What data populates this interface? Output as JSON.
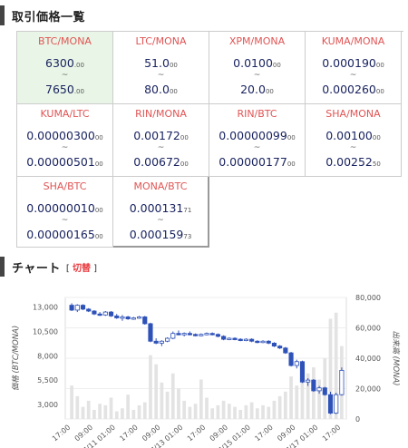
{
  "prices_section": {
    "title": "取引価格一覧"
  },
  "pairs": [
    {
      "pair": "BTC/MONA",
      "low_main": "6300",
      "low_dec": ".00",
      "high_main": "7650",
      "high_dec": ".00",
      "selected": true
    },
    {
      "pair": "LTC/MONA",
      "low_main": "51.0",
      "low_dec": "00",
      "high_main": "80.0",
      "high_dec": "00"
    },
    {
      "pair": "XPM/MONA",
      "low_main": "0.0100",
      "low_dec": "00",
      "high_main": "20.0",
      "high_dec": "00"
    },
    {
      "pair": "KUMA/MONA",
      "low_main": "0.000190",
      "low_dec": "00",
      "high_main": "0.000260",
      "high_dec": "00"
    },
    {
      "pair": "KUMA/LTC",
      "low_main": "0.00000300",
      "low_dec": "00",
      "high_main": "0.00000501",
      "high_dec": "00"
    },
    {
      "pair": "RIN/MONA",
      "low_main": "0.00172",
      "low_dec": "00",
      "high_main": "0.00672",
      "high_dec": "00"
    },
    {
      "pair": "RIN/BTC",
      "low_main": "0.00000099",
      "low_dec": "00",
      "high_main": "0.00000177",
      "high_dec": "00"
    },
    {
      "pair": "SHA/MONA",
      "low_main": "0.00100",
      "low_dec": "00",
      "high_main": "0.00252",
      "high_dec": "50"
    },
    {
      "pair": "SHA/BTC",
      "low_main": "0.00000010",
      "low_dec": "00",
      "high_main": "0.00000165",
      "high_dec": "00"
    },
    {
      "pair": "MONA/BTC",
      "low_main": "0.000131",
      "low_dec": "71",
      "high_main": "0.000159",
      "high_dec": "73"
    }
  ],
  "range_separator": "~",
  "chart_section": {
    "title": "チャート",
    "switch_open": "[",
    "switch_label": "切替",
    "switch_close": "]"
  },
  "chart_data": {
    "type": "candlestick",
    "title": "",
    "ylabel": "価格 (BTC/MONA)",
    "y2label": "出来高 (MONA)",
    "ylim": [
      1500,
      14000
    ],
    "y2lim": [
      0,
      80000
    ],
    "yticks": [
      "13,000",
      "10,500",
      "8,000",
      "5,500",
      "3,000"
    ],
    "yticks_values": [
      13000,
      10500,
      8000,
      5500,
      3000
    ],
    "y2ticks": [
      "80,000",
      "60,000",
      "40,000",
      "20,000",
      "0"
    ],
    "y2ticks_values": [
      80000,
      60000,
      40000,
      20000,
      0
    ],
    "xticks": [
      "17:00",
      "09:00",
      "7/11 01:00",
      "17:00",
      "09:00",
      "7/13 01:00",
      "17:00",
      "09:00",
      "7/15 01:00",
      "17:00",
      "09:00",
      "7/17 01:00",
      "17:00"
    ],
    "colors": {
      "up": "#ffffff",
      "down": "#2f52b8",
      "wick": "#2f52b8",
      "volume": "#e3e3e3"
    },
    "candles": [
      {
        "o": 13200,
        "h": 13400,
        "l": 12600,
        "c": 12700
      },
      {
        "o": 12700,
        "h": 13300,
        "l": 12500,
        "c": 13200
      },
      {
        "o": 13200,
        "h": 13300,
        "l": 12700,
        "c": 12800
      },
      {
        "o": 12800,
        "h": 12900,
        "l": 12500,
        "c": 12600
      },
      {
        "o": 12600,
        "h": 12700,
        "l": 12200,
        "c": 12300
      },
      {
        "o": 12300,
        "h": 12500,
        "l": 12100,
        "c": 12200
      },
      {
        "o": 12200,
        "h": 12600,
        "l": 12100,
        "c": 12500
      },
      {
        "o": 12500,
        "h": 12600,
        "l": 12000,
        "c": 12100
      },
      {
        "o": 12100,
        "h": 12300,
        "l": 11800,
        "c": 11900
      },
      {
        "o": 11900,
        "h": 12200,
        "l": 11600,
        "c": 12000
      },
      {
        "o": 12000,
        "h": 12100,
        "l": 11700,
        "c": 11800
      },
      {
        "o": 11800,
        "h": 12000,
        "l": 11700,
        "c": 11900
      },
      {
        "o": 11900,
        "h": 12100,
        "l": 11800,
        "c": 12000
      },
      {
        "o": 12000,
        "h": 12100,
        "l": 11200,
        "c": 11300
      },
      {
        "o": 11300,
        "h": 11400,
        "l": 9400,
        "c": 9500
      },
      {
        "o": 9500,
        "h": 9800,
        "l": 9200,
        "c": 9300
      },
      {
        "o": 9300,
        "h": 9600,
        "l": 9000,
        "c": 9500
      },
      {
        "o": 9500,
        "h": 9900,
        "l": 9400,
        "c": 9800
      },
      {
        "o": 9800,
        "h": 10500,
        "l": 9700,
        "c": 10300
      },
      {
        "o": 10300,
        "h": 10600,
        "l": 10100,
        "c": 10200
      },
      {
        "o": 10200,
        "h": 10400,
        "l": 10000,
        "c": 10300
      },
      {
        "o": 10300,
        "h": 10500,
        "l": 10100,
        "c": 10200
      },
      {
        "o": 10200,
        "h": 10300,
        "l": 10000,
        "c": 10100
      },
      {
        "o": 10100,
        "h": 10300,
        "l": 10000,
        "c": 10200
      },
      {
        "o": 10200,
        "h": 10400,
        "l": 10100,
        "c": 10300
      },
      {
        "o": 10300,
        "h": 10400,
        "l": 10100,
        "c": 10200
      },
      {
        "o": 10200,
        "h": 10300,
        "l": 9900,
        "c": 10000
      },
      {
        "o": 10000,
        "h": 10100,
        "l": 9600,
        "c": 9700
      },
      {
        "o": 9700,
        "h": 9900,
        "l": 9600,
        "c": 9800
      },
      {
        "o": 9800,
        "h": 9900,
        "l": 9600,
        "c": 9700
      },
      {
        "o": 9700,
        "h": 9800,
        "l": 9500,
        "c": 9600
      },
      {
        "o": 9600,
        "h": 9800,
        "l": 9500,
        "c": 9700
      },
      {
        "o": 9700,
        "h": 9800,
        "l": 9400,
        "c": 9500
      },
      {
        "o": 9500,
        "h": 9600,
        "l": 9300,
        "c": 9400
      },
      {
        "o": 9400,
        "h": 9600,
        "l": 9300,
        "c": 9500
      },
      {
        "o": 9500,
        "h": 9600,
        "l": 9200,
        "c": 9300
      },
      {
        "o": 9300,
        "h": 9400,
        "l": 8900,
        "c": 9000
      },
      {
        "o": 9000,
        "h": 9100,
        "l": 8700,
        "c": 8800
      },
      {
        "o": 8800,
        "h": 8900,
        "l": 8200,
        "c": 8300
      },
      {
        "o": 8300,
        "h": 8400,
        "l": 6900,
        "c": 7000
      },
      {
        "o": 7000,
        "h": 7600,
        "l": 6700,
        "c": 7400
      },
      {
        "o": 7400,
        "h": 7500,
        "l": 5200,
        "c": 5300
      },
      {
        "o": 5300,
        "h": 5700,
        "l": 4900,
        "c": 5500
      },
      {
        "o": 5500,
        "h": 5600,
        "l": 4300,
        "c": 4400
      },
      {
        "o": 4400,
        "h": 4900,
        "l": 4100,
        "c": 4700
      },
      {
        "o": 4700,
        "h": 4800,
        "l": 3900,
        "c": 4000
      },
      {
        "o": 4000,
        "h": 4300,
        "l": 2000,
        "c": 2100
      },
      {
        "o": 2100,
        "h": 4200,
        "l": 2000,
        "c": 4000
      },
      {
        "o": 4000,
        "h": 6800,
        "l": 3900,
        "c": 6500
      }
    ],
    "volumes": [
      22000,
      15000,
      8000,
      12000,
      6000,
      10000,
      9000,
      14000,
      5000,
      7000,
      16000,
      6000,
      9000,
      11000,
      42000,
      36000,
      24000,
      18000,
      30000,
      20000,
      12000,
      8000,
      10000,
      26000,
      14000,
      7000,
      9000,
      12000,
      10000,
      8000,
      6000,
      9000,
      11000,
      7000,
      9000,
      8000,
      12000,
      15000,
      18000,
      28000,
      22000,
      36000,
      30000,
      34000,
      26000,
      40000,
      66000,
      70000,
      48000
    ]
  }
}
